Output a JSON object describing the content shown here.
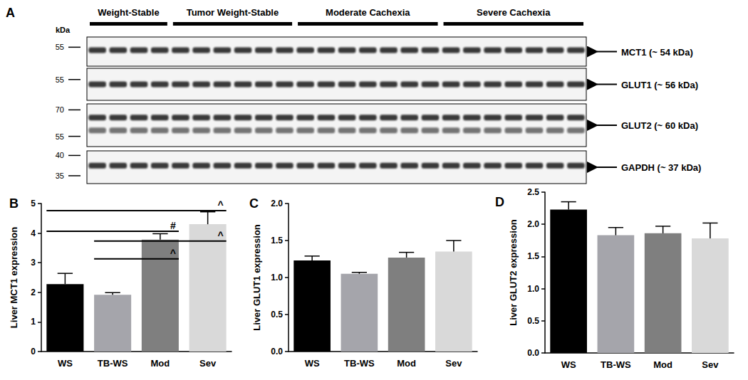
{
  "blot": {
    "title": "A",
    "unit": "kDa",
    "groups": [
      {
        "label": "Weight-Stable",
        "lanes": 4
      },
      {
        "label": "Tumor Weight-Stable",
        "lanes": 6
      },
      {
        "label": "Moderate Cachexia",
        "lanes": 7
      },
      {
        "label": "Severe Cachexia",
        "lanes": 7
      }
    ],
    "rows": [
      {
        "label": "MCT1 (~ 54 kDa)",
        "markers": [
          55
        ]
      },
      {
        "label": "GLUT1 (~ 56 kDa)",
        "markers": [
          55
        ]
      },
      {
        "label": "GLUT2 (~ 60 kDa)",
        "markers": [
          70,
          55
        ]
      },
      {
        "label": "GAPDH (~ 37 kDa)",
        "markers": [
          40,
          35
        ]
      }
    ]
  },
  "chart_data": [
    {
      "type": "bar",
      "title": "B",
      "y_label": "Liver MCT1 expression",
      "categories": [
        "WS",
        "TB-WS",
        "Mod",
        "Sev"
      ],
      "values": [
        2.28,
        1.92,
        3.78,
        4.3
      ],
      "errors": [
        0.36,
        0.07,
        0.2,
        0.42
      ],
      "colors": [
        "#000000",
        "#a5a5ab",
        "#7f7f7f",
        "#d9d9d9"
      ],
      "ylim": [
        0,
        5
      ],
      "yticks": [
        0,
        1,
        2,
        3,
        4,
        5
      ],
      "grid": false,
      "annotations": [
        {
          "from": "WS",
          "to": "Sev",
          "y": 4.76,
          "label": "^"
        },
        {
          "from": "WS",
          "to": "Mod",
          "y": 4.06,
          "label": "#"
        },
        {
          "from": "TB-WS",
          "to": "Sev",
          "y": 3.73,
          "label": "^"
        },
        {
          "from": "TB-WS",
          "to": "Mod",
          "y": 3.13,
          "label": "^"
        }
      ]
    },
    {
      "type": "bar",
      "title": "C",
      "y_label": "Liver GLUT1 expression",
      "categories": [
        "WS",
        "TB-WS",
        "Mod",
        "Sev"
      ],
      "values": [
        1.23,
        1.05,
        1.27,
        1.35
      ],
      "errors": [
        0.06,
        0.02,
        0.07,
        0.15
      ],
      "colors": [
        "#000000",
        "#a5a5ab",
        "#7f7f7f",
        "#d9d9d9"
      ],
      "ylim": [
        0,
        2
      ],
      "yticks": [
        {
          "value": 0,
          "label": "0.0"
        },
        0.5,
        {
          "value": 1,
          "label": "1.0"
        },
        1.5,
        {
          "value": 2,
          "label": "2.0"
        }
      ],
      "grid": false
    },
    {
      "type": "bar",
      "title": "D",
      "y_label": "Liver GLUT2 expression",
      "categories": [
        "WS",
        "TB-WS",
        "Mod",
        "Sev"
      ],
      "values": [
        2.23,
        1.83,
        1.86,
        1.78
      ],
      "errors": [
        0.12,
        0.12,
        0.11,
        0.24
      ],
      "colors": [
        "#000000",
        "#a5a5ab",
        "#7f7f7f",
        "#d9d9d9"
      ],
      "ylim": [
        0,
        2.5
      ],
      "yticks": [
        {
          "value": 0,
          "label": "0.0"
        },
        0.5,
        {
          "value": 1,
          "label": "1.0"
        },
        1.5,
        {
          "value": 2,
          "label": "2.0"
        },
        2.5
      ],
      "grid": false
    }
  ]
}
